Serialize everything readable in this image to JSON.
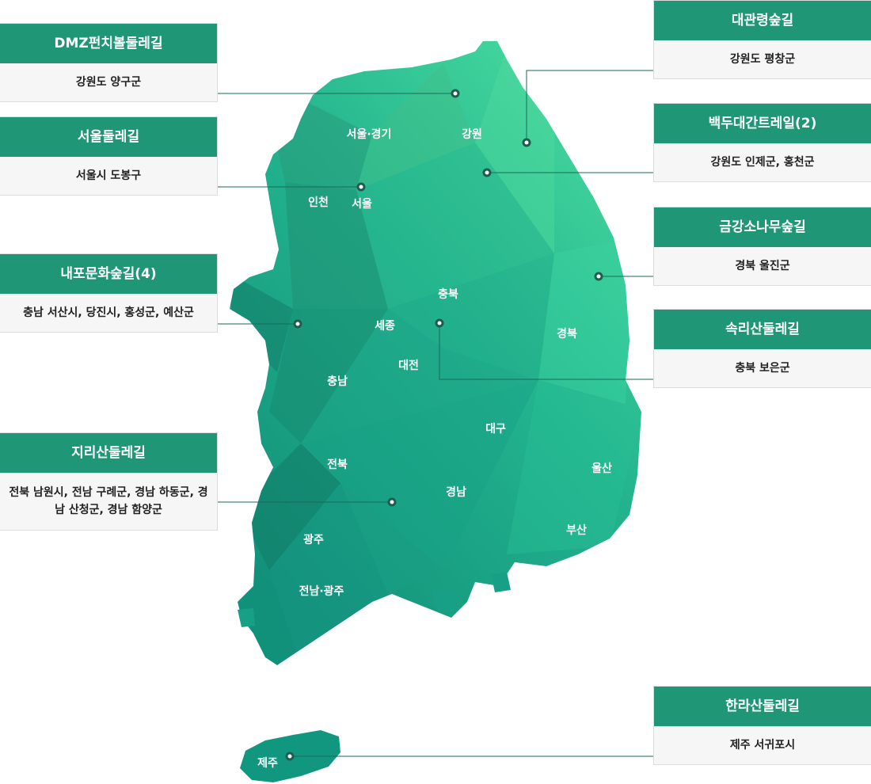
{
  "colors": {
    "accent": "#1f9676",
    "map_light": "#45d69d",
    "map_mid": "#1aa88b",
    "map_dark": "#137a66",
    "card_bg": "#f6f6f6",
    "line": "#1a6a5a"
  },
  "regions": {
    "seoul_gyeonggi": "서울·경기",
    "gangwon": "강원",
    "incheon": "인천",
    "seoul": "서울",
    "chungbuk": "충북",
    "sejong": "세종",
    "gyeongbuk": "경북",
    "daejeon": "대전",
    "chungnam": "충남",
    "daegu": "대구",
    "jeonbuk": "전북",
    "ulsan": "울산",
    "gyeongnam": "경남",
    "busan": "부산",
    "gwangju": "광주",
    "jeonnam_gwangju": "전남·광주",
    "jeju": "제주"
  },
  "trails": [
    {
      "name": "DMZ펀치볼둘레길",
      "location": "강원도 양구군"
    },
    {
      "name": "서울둘레길",
      "location": "서울시 도봉구"
    },
    {
      "name": "내포문화숲길(4)",
      "location": "충남 서산시, 당진시, 홍성군, 예산군"
    },
    {
      "name": "지리산둘레길",
      "location": "전북 남원시, 전남 구례군, 경남 하동군, 경남 산청군, 경남 함양군"
    },
    {
      "name": "대관령숲길",
      "location": "강원도 평창군"
    },
    {
      "name": "백두대간트레일(2)",
      "location": "강원도 인제군, 홍천군"
    },
    {
      "name": "금강소나무숲길",
      "location": "경북 울진군"
    },
    {
      "name": "속리산둘레길",
      "location": "충북 보은군"
    },
    {
      "name": "한라산둘레길",
      "location": "제주 서귀포시"
    }
  ]
}
